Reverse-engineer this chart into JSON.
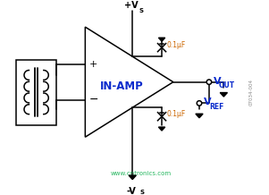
{
  "bg_color": "#ffffff",
  "line_color": "#000000",
  "blue": "#0a2bcc",
  "orange": "#cc6600",
  "green": "#00aa44",
  "fig_width": 3.01,
  "fig_height": 2.18,
  "dpi": 100,
  "watermark": "www.cntronics.com",
  "code": "07034-004",
  "inamp": "IN-AMP",
  "cap_label": "0.1μF",
  "vout": "V",
  "vout_sub": "OUT",
  "vref": "V",
  "vref_sub": "REF",
  "vs_pos": "+V",
  "vs_pos_sub": "S",
  "vs_neg": "-V",
  "vs_neg_sub": "S",
  "plus": "+",
  "minus": "−"
}
